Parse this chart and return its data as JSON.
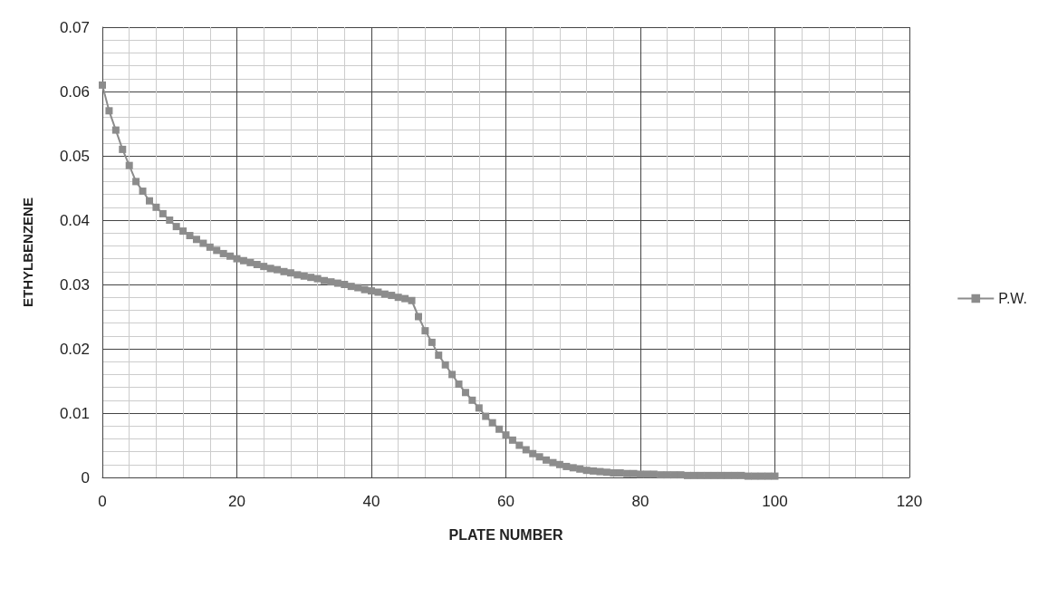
{
  "chart_data": {
    "type": "line",
    "xlabel": "PLATE NUMBER",
    "ylabel": "ETHYLBENZENE",
    "xlim": [
      0,
      120
    ],
    "xticks": [
      0,
      20,
      40,
      60,
      80,
      100,
      120
    ],
    "ylim": [
      0,
      0.07
    ],
    "yticks": [
      0,
      0.01,
      0.02,
      0.03,
      0.04,
      0.05,
      0.06,
      0.07
    ],
    "grid": true,
    "legend": "right",
    "marker": "square",
    "line_style": "solid",
    "series": [
      {
        "name": "P.W.",
        "color": "#8c8c8c",
        "x": [
          0,
          1,
          2,
          3,
          4,
          5,
          6,
          7,
          8,
          9,
          10,
          11,
          12,
          13,
          14,
          15,
          16,
          17,
          18,
          19,
          20,
          21,
          22,
          23,
          24,
          25,
          26,
          27,
          28,
          29,
          30,
          31,
          32,
          33,
          34,
          35,
          36,
          37,
          38,
          39,
          40,
          41,
          42,
          43,
          44,
          45,
          46,
          47,
          48,
          49,
          50,
          51,
          52,
          53,
          54,
          55,
          56,
          57,
          58,
          59,
          60,
          61,
          62,
          63,
          64,
          65,
          66,
          67,
          68,
          69,
          70,
          71,
          72,
          73,
          74,
          75,
          76,
          77,
          78,
          79,
          80,
          81,
          82,
          83,
          84,
          85,
          86,
          87,
          88,
          89,
          90,
          91,
          92,
          93,
          94,
          95,
          96,
          97,
          98,
          99,
          100
        ],
        "values": [
          0.061,
          0.057,
          0.054,
          0.051,
          0.0485,
          0.046,
          0.0445,
          0.043,
          0.042,
          0.041,
          0.04,
          0.039,
          0.0383,
          0.0376,
          0.037,
          0.0364,
          0.0358,
          0.0353,
          0.0348,
          0.0344,
          0.034,
          0.0337,
          0.0334,
          0.0331,
          0.0328,
          0.0325,
          0.0323,
          0.032,
          0.0318,
          0.0315,
          0.0313,
          0.0311,
          0.0309,
          0.0306,
          0.0304,
          0.0302,
          0.03,
          0.0297,
          0.0295,
          0.0292,
          0.029,
          0.0288,
          0.0285,
          0.0283,
          0.028,
          0.0278,
          0.0275,
          0.025,
          0.0228,
          0.021,
          0.019,
          0.0175,
          0.016,
          0.0145,
          0.0132,
          0.012,
          0.0108,
          0.0095,
          0.0085,
          0.0075,
          0.0066,
          0.0058,
          0.005,
          0.0043,
          0.0037,
          0.0032,
          0.0027,
          0.0023,
          0.002,
          0.0017,
          0.0015,
          0.0013,
          0.0011,
          0.001,
          0.0009,
          0.0008,
          0.0007,
          0.0007,
          0.0006,
          0.0006,
          0.0005,
          0.0005,
          0.0005,
          0.0004,
          0.0004,
          0.0004,
          0.0004,
          0.0003,
          0.0003,
          0.0003,
          0.0003,
          0.0003,
          0.0003,
          0.0003,
          0.0003,
          0.0003,
          0.0002,
          0.0002,
          0.0002,
          0.0002,
          0.0002
        ]
      }
    ]
  }
}
